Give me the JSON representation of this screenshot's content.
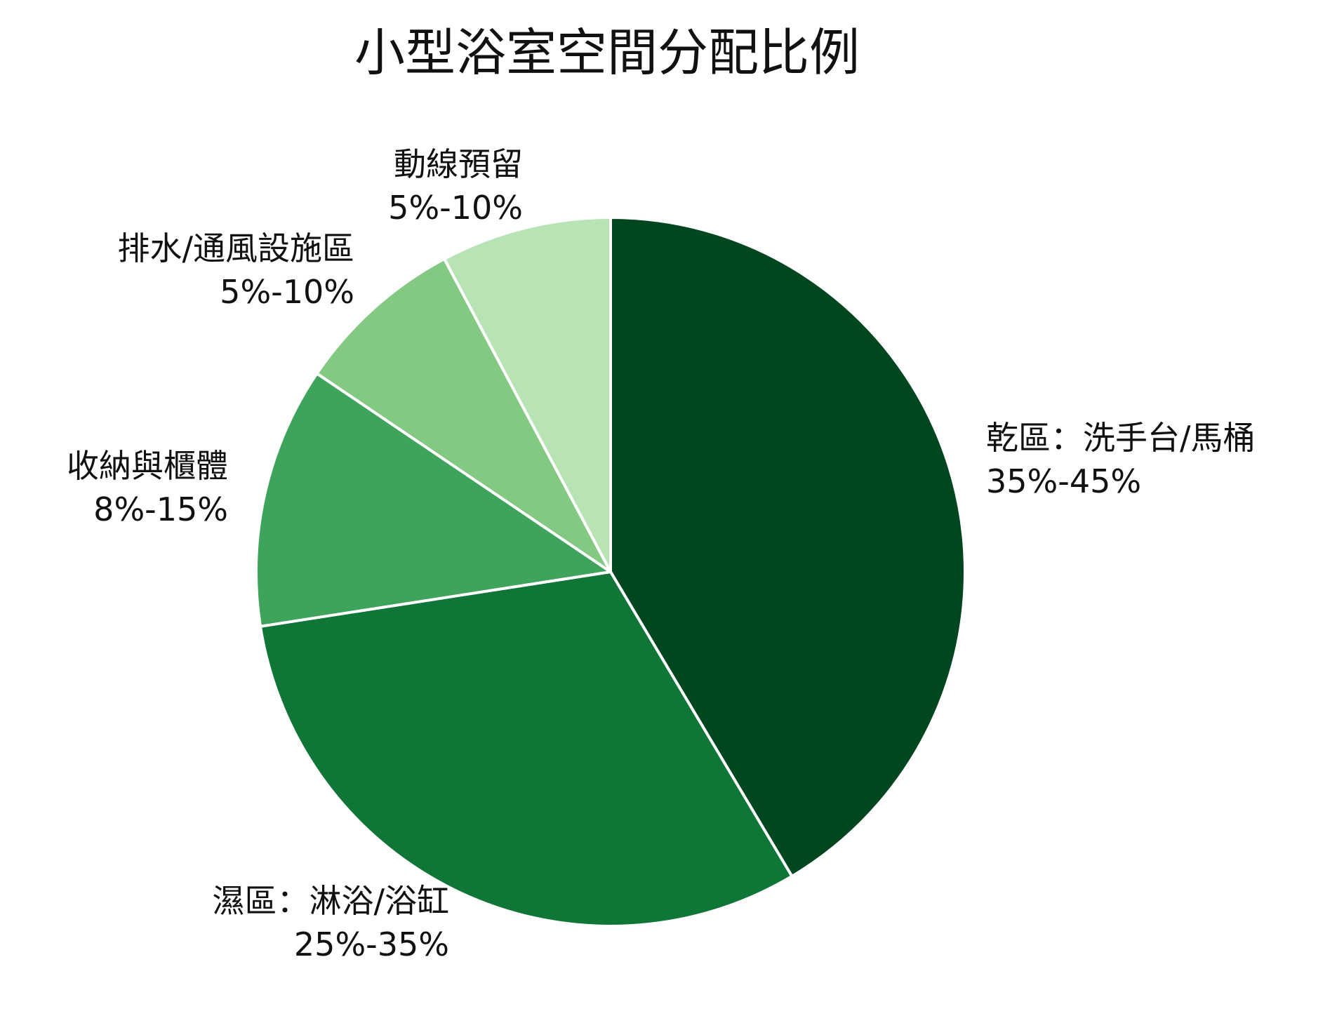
{
  "chart_data": {
    "type": "pie",
    "title": "小型浴室空間分配比例",
    "slices": [
      {
        "name": "乾區：洗手台/馬桶",
        "range": "35%-45%",
        "value": 40,
        "color": "#00471F"
      },
      {
        "name": "濕區：淋浴/浴缸",
        "range": "25%-35%",
        "value": 30,
        "color": "#0F7637"
      },
      {
        "name": "收納與櫃體",
        "range": "8%-15%",
        "value": 11.5,
        "color": "#3EA45B"
      },
      {
        "name": "排水/通風設施區",
        "range": "5%-10%",
        "value": 7.5,
        "color": "#83C982"
      },
      {
        "name": "動線預留",
        "range": "5%-10%",
        "value": 7.5,
        "color": "#B8E3B4"
      }
    ]
  }
}
